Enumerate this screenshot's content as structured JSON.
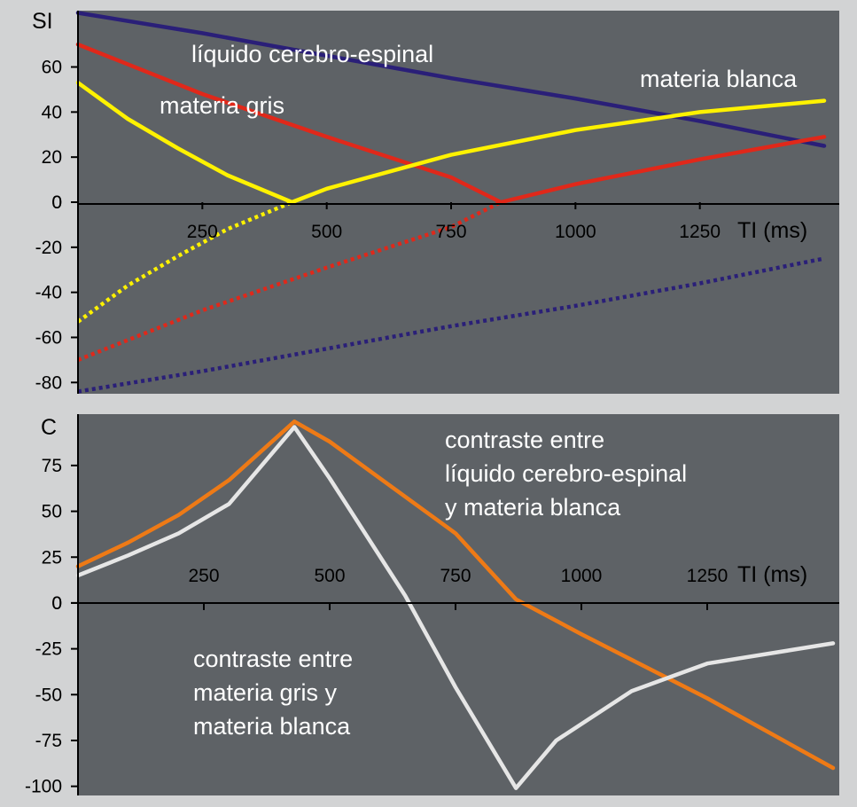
{
  "chart_data": [
    {
      "type": "line",
      "ylabel": "SI",
      "xlabel": "TI (ms)",
      "xlim": [
        0,
        1500
      ],
      "ylim": [
        -85,
        85
      ],
      "x_ticks": [
        250,
        500,
        750,
        1000,
        1250
      ],
      "y_ticks": [
        60,
        40,
        20,
        0,
        -20,
        -40,
        -60,
        -80
      ],
      "grid": false,
      "series": [
        {
          "name": "líquido cerebro-espinal",
          "color": "#2a1f78",
          "x": [
            0,
            250,
            500,
            750,
            1000,
            1250,
            1500
          ],
          "values": [
            84,
            75,
            65,
            55,
            46,
            36,
            25
          ],
          "dotted_values": [
            -84,
            -75,
            -65,
            -55,
            -46,
            -36,
            -25
          ]
        },
        {
          "name": "materia gris",
          "color": "#e0281a",
          "x": [
            0,
            250,
            500,
            750,
            850,
            1000,
            1250,
            1500
          ],
          "values": [
            70,
            48,
            29,
            11,
            0,
            8,
            19,
            29
          ],
          "dotted_values": [
            -70,
            -48,
            -29,
            -11,
            0
          ]
        },
        {
          "name": "materia blanca",
          "color": "#fff200",
          "x": [
            0,
            100,
            200,
            300,
            430,
            500,
            750,
            1000,
            1250,
            1500
          ],
          "values": [
            53,
            37,
            24,
            12,
            0,
            6,
            21,
            32,
            40,
            45
          ],
          "dotted_values": [
            -53,
            -37,
            -24,
            -12,
            0
          ]
        }
      ],
      "annotations": [
        "líquido cerebro-espinal",
        "materia gris",
        "materia blanca"
      ]
    },
    {
      "type": "line",
      "ylabel": "C",
      "xlabel": "TI (ms)",
      "xlim": [
        0,
        1500
      ],
      "ylim": [
        -105,
        103
      ],
      "x_ticks": [
        250,
        500,
        750,
        1000,
        1250
      ],
      "y_ticks": [
        75,
        50,
        25,
        0,
        -25,
        -50,
        -75,
        -100
      ],
      "grid": false,
      "series": [
        {
          "name": "contraste entre líquido cerebro-espinal y materia blanca",
          "color": "#ee7a16",
          "x": [
            0,
            100,
            200,
            300,
            430,
            500,
            600,
            750,
            870,
            1000,
            1250,
            1500
          ],
          "values": [
            20,
            33,
            48,
            67,
            99,
            88,
            68,
            38,
            2,
            -17,
            -52,
            -90
          ]
        },
        {
          "name": "contraste entre materia gris y materia blanca",
          "color": "#e6e6e6",
          "x": [
            0,
            100,
            200,
            300,
            430,
            500,
            650,
            750,
            870,
            950,
            1100,
            1250,
            1500
          ],
          "values": [
            15,
            26,
            38,
            54,
            96,
            68,
            4,
            -46,
            -101,
            -75,
            -48,
            -33,
            -22
          ]
        }
      ],
      "annotations": [
        "contraste entre líquido cerebro-espinal y materia blanca",
        "contraste entre materia gris y materia blanca"
      ]
    }
  ]
}
